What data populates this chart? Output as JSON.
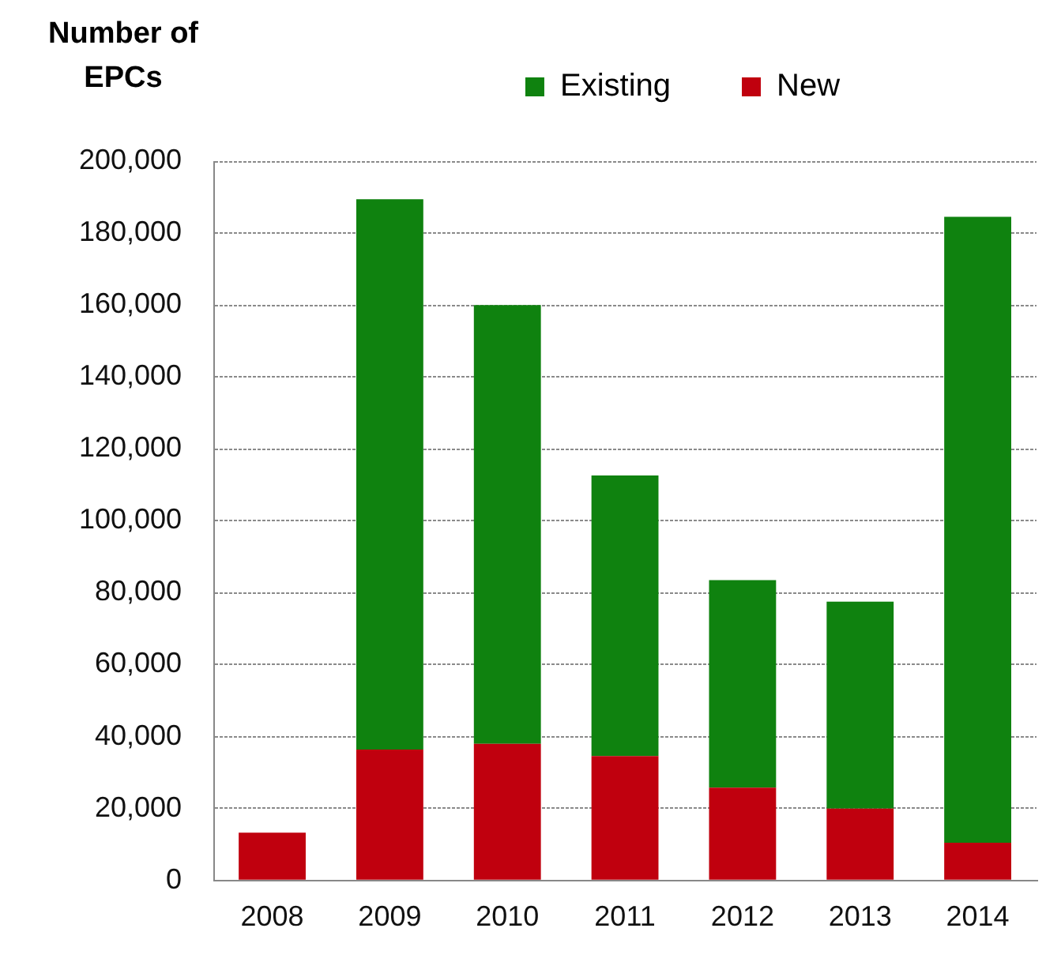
{
  "chart_data": {
    "type": "bar",
    "ylabel": "Number of EPCs",
    "categories": [
      "2008",
      "2009",
      "2010",
      "2011",
      "2012",
      "2013",
      "2014"
    ],
    "stacked": true,
    "series": [
      {
        "name": "New",
        "color": "#c0000e",
        "values": [
          13300,
          36400,
          38000,
          34600,
          25800,
          20000,
          10500
        ]
      },
      {
        "name": "Existing",
        "color": "#0f820f",
        "values": [
          0,
          153000,
          122000,
          78000,
          57700,
          57500,
          174000
        ]
      }
    ],
    "ylim": [
      0,
      200000
    ],
    "yticks": [
      0,
      {
        "value": 20000,
        "label": "20,000"
      },
      {
        "value": 40000,
        "label": "40,000"
      },
      {
        "value": 60000,
        "label": "60,000"
      },
      {
        "value": 80000,
        "label": "80,000"
      },
      {
        "value": 100000,
        "label": "100,000"
      },
      {
        "value": 120000,
        "label": "120,000"
      },
      {
        "value": 140000,
        "label": "140,000"
      },
      {
        "value": 160000,
        "label": "160,000"
      },
      {
        "value": 180000,
        "label": "180,000"
      },
      {
        "value": 200000,
        "label": "200,000"
      }
    ],
    "grid": "y",
    "legend": "top"
  }
}
